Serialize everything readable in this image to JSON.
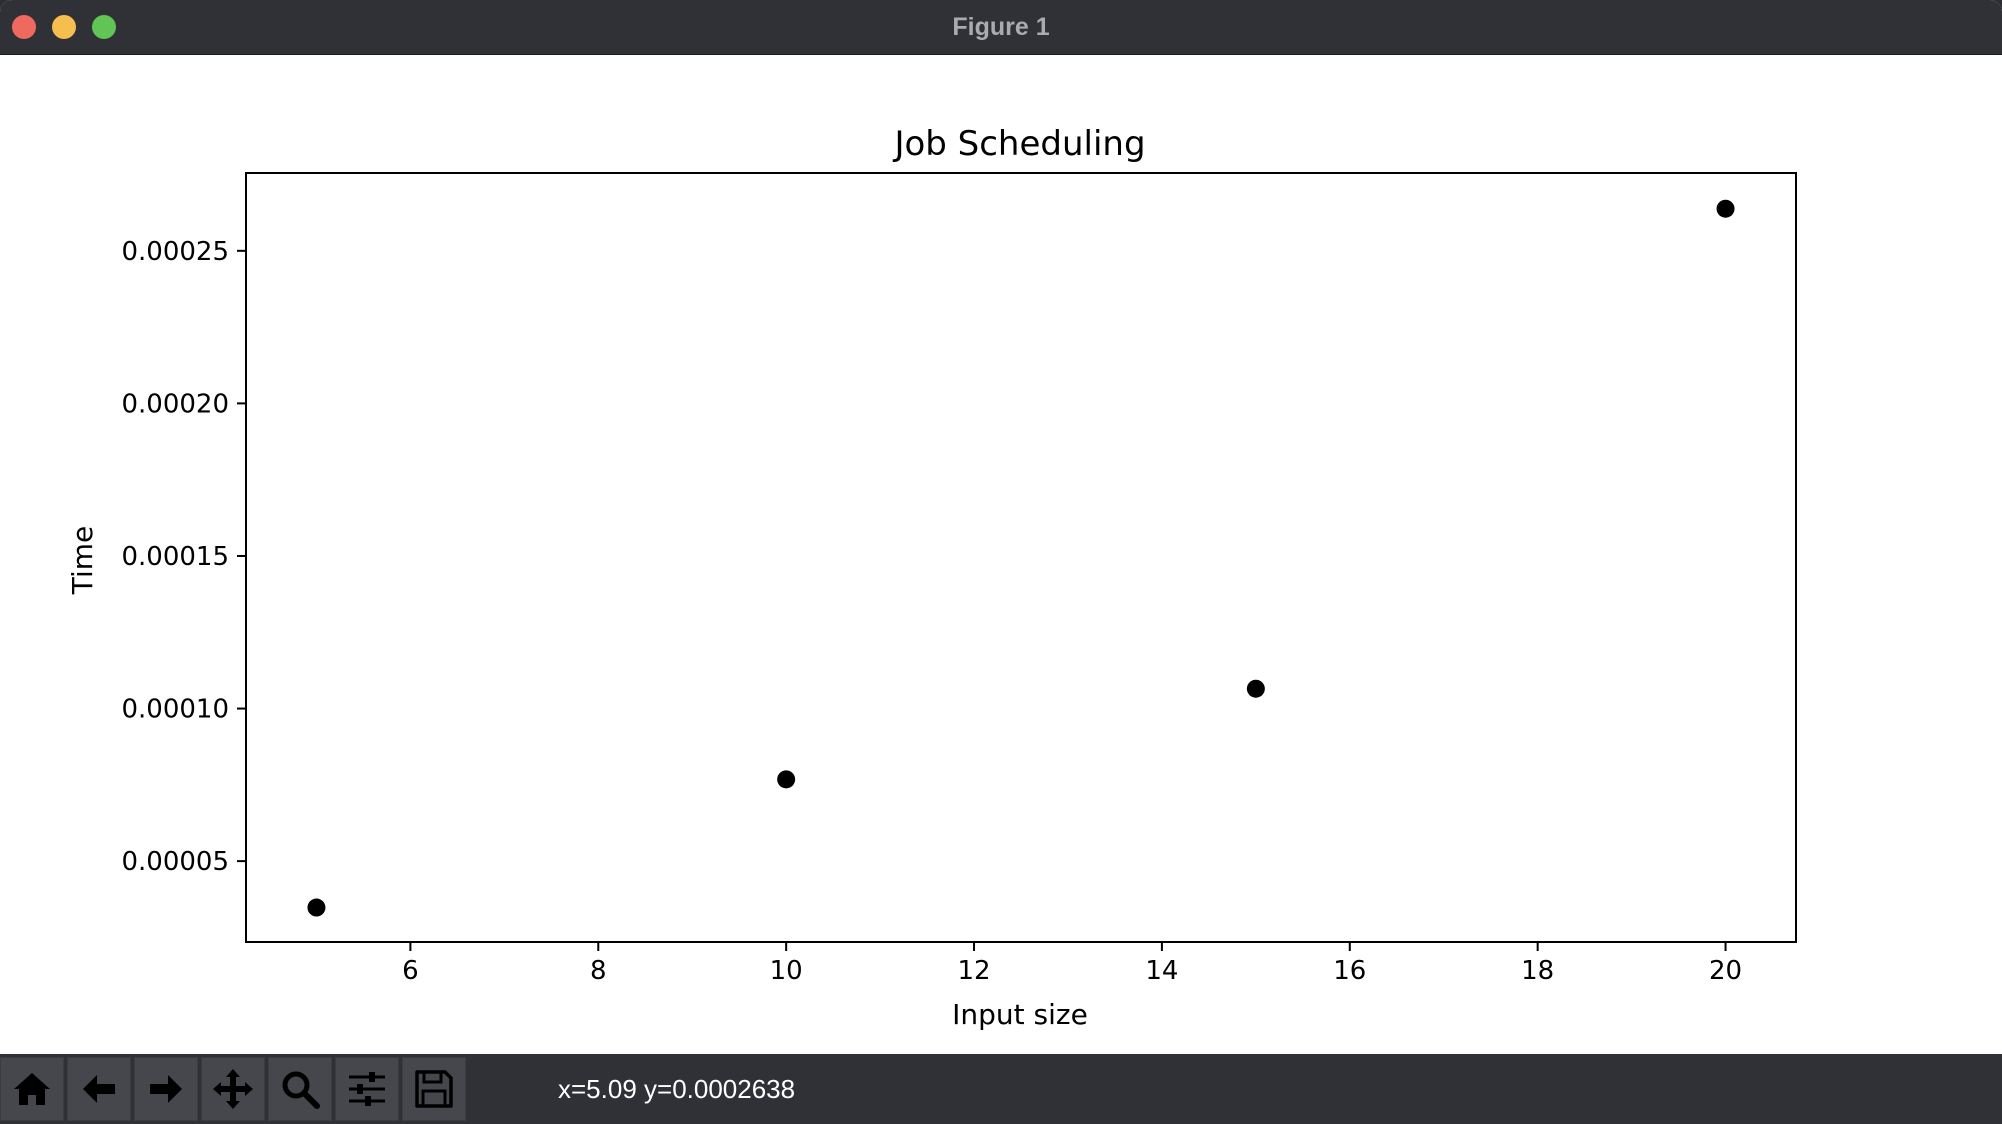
{
  "window": {
    "title": "Figure 1"
  },
  "toolbar": {
    "buttons": [
      {
        "name": "home",
        "icon": "home-icon"
      },
      {
        "name": "back",
        "icon": "arrow-left-icon"
      },
      {
        "name": "forward",
        "icon": "arrow-right-icon"
      },
      {
        "name": "pan",
        "icon": "move-icon"
      },
      {
        "name": "zoom",
        "icon": "magnifier-icon"
      },
      {
        "name": "configure",
        "icon": "sliders-icon"
      },
      {
        "name": "save",
        "icon": "floppy-disk-icon"
      }
    ],
    "coords": "x=5.09 y=0.0002638"
  },
  "chart_data": {
    "type": "scatter",
    "title": "Job Scheduling",
    "xlabel": "Input size",
    "ylabel": "Time",
    "xlim": [
      4.25,
      20.75
    ],
    "ylim": [
      2.35e-05,
      0.0002755
    ],
    "xticks": [
      6,
      8,
      10,
      12,
      14,
      16,
      18,
      20
    ],
    "xtick_labels": [
      "6",
      "8",
      "10",
      "12",
      "14",
      "16",
      "18",
      "20"
    ],
    "yticks": [
      5e-05,
      0.0001,
      0.00015,
      0.0002,
      0.00025
    ],
    "ytick_labels": [
      "0.00005",
      "0.00010",
      "0.00015",
      "0.00020",
      "0.00025"
    ],
    "grid": false,
    "marker_color": "#000000",
    "points": [
      {
        "x": 5,
        "y": 3.48e-05
      },
      {
        "x": 10,
        "y": 7.68e-05
      },
      {
        "x": 15,
        "y": 0.0001065
      },
      {
        "x": 20,
        "y": 0.0002638
      }
    ]
  }
}
